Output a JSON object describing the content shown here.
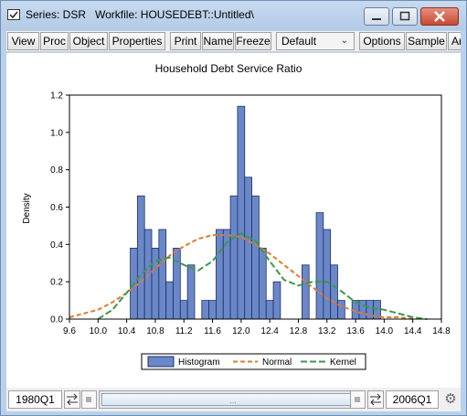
{
  "window": {
    "title": "Series: DSR   Workfile: HOUSEDEBT::Untitled\\"
  },
  "toolbar": {
    "buttons": [
      "View",
      "Proc",
      "Object",
      "Properties",
      "Print",
      "Name",
      "Freeze",
      "Options",
      "Sample",
      "Ar"
    ],
    "view_select": "Default"
  },
  "statusbar": {
    "start": "1980Q1",
    "end": "2006Q1",
    "gear_icon": "gear-icon"
  },
  "chart_data": {
    "type": "bar",
    "title": "Household Debt Service Ratio",
    "xlabel": "",
    "ylabel": "Density",
    "xlim": [
      9.6,
      14.8
    ],
    "ylim": [
      0,
      1.2
    ],
    "x_ticks": [
      "9.6",
      "10.0",
      "10.4",
      "10.8",
      "11.2",
      "11.6",
      "12.0",
      "12.4",
      "12.8",
      "13.2",
      "13.6",
      "14.0",
      "14.4",
      "14.8"
    ],
    "y_ticks": [
      "0.0",
      "0.2",
      "0.4",
      "0.6",
      "0.8",
      "1.0",
      "1.2"
    ],
    "grid": false,
    "legend": {
      "placement": "bottom-center",
      "entries": [
        "Histogram",
        "Normal",
        "Kernel"
      ]
    },
    "colors": {
      "histogram": "#6a87c8",
      "normal": "#e07b2f",
      "kernel": "#3a9a4a"
    },
    "histogram": {
      "bin_width": 0.1,
      "bins": [
        {
          "x": 10.5,
          "density": 0.38
        },
        {
          "x": 10.6,
          "density": 0.66
        },
        {
          "x": 10.7,
          "density": 0.48
        },
        {
          "x": 10.8,
          "density": 0.38
        },
        {
          "x": 10.9,
          "density": 0.48
        },
        {
          "x": 11.0,
          "density": 0.2
        },
        {
          "x": 11.1,
          "density": 0.38
        },
        {
          "x": 11.2,
          "density": 0.1
        },
        {
          "x": 11.3,
          "density": 0.29
        },
        {
          "x": 11.5,
          "density": 0.1
        },
        {
          "x": 11.6,
          "density": 0.1
        },
        {
          "x": 11.7,
          "density": 0.48
        },
        {
          "x": 11.8,
          "density": 0.48
        },
        {
          "x": 11.9,
          "density": 0.66
        },
        {
          "x": 12.0,
          "density": 1.14
        },
        {
          "x": 12.1,
          "density": 0.76
        },
        {
          "x": 12.2,
          "density": 0.66
        },
        {
          "x": 12.3,
          "density": 0.38
        },
        {
          "x": 12.4,
          "density": 0.1
        },
        {
          "x": 12.5,
          "density": 0.2
        },
        {
          "x": 12.9,
          "density": 0.29
        },
        {
          "x": 13.1,
          "density": 0.57
        },
        {
          "x": 13.2,
          "density": 0.48
        },
        {
          "x": 13.3,
          "density": 0.29
        },
        {
          "x": 13.4,
          "density": 0.1
        },
        {
          "x": 13.6,
          "density": 0.1
        },
        {
          "x": 13.7,
          "density": 0.1
        },
        {
          "x": 13.8,
          "density": 0.1
        },
        {
          "x": 13.9,
          "density": 0.1
        }
      ]
    },
    "series": [
      {
        "name": "Normal",
        "x": [
          9.6,
          9.8,
          10.0,
          10.2,
          10.4,
          10.6,
          10.8,
          11.0,
          11.2,
          11.4,
          11.6,
          11.8,
          12.0,
          12.2,
          12.4,
          12.6,
          12.8,
          13.0,
          13.2,
          13.4,
          13.6,
          13.8,
          14.0,
          14.2,
          14.4
        ],
        "y": [
          0.01,
          0.03,
          0.05,
          0.09,
          0.14,
          0.2,
          0.27,
          0.34,
          0.39,
          0.43,
          0.45,
          0.45,
          0.44,
          0.4,
          0.35,
          0.29,
          0.23,
          0.17,
          0.11,
          0.07,
          0.04,
          0.02,
          0.01,
          0.01,
          0.0
        ]
      },
      {
        "name": "Kernel",
        "x": [
          10.0,
          10.2,
          10.4,
          10.6,
          10.8,
          11.0,
          11.2,
          11.4,
          11.6,
          11.8,
          12.0,
          12.2,
          12.4,
          12.6,
          12.8,
          13.0,
          13.2,
          13.4,
          13.6,
          13.8,
          14.0,
          14.2,
          14.4,
          14.6
        ],
        "y": [
          0.0,
          0.05,
          0.14,
          0.24,
          0.31,
          0.33,
          0.29,
          0.26,
          0.31,
          0.41,
          0.46,
          0.42,
          0.31,
          0.21,
          0.18,
          0.2,
          0.2,
          0.15,
          0.09,
          0.06,
          0.05,
          0.03,
          0.01,
          0.0
        ]
      }
    ]
  }
}
